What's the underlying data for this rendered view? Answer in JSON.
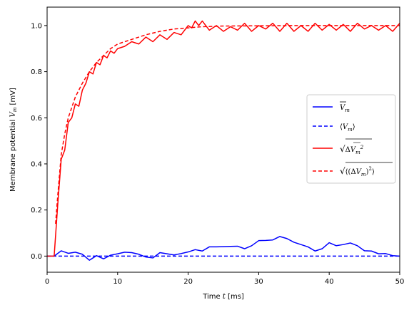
{
  "chart_data": {
    "type": "line",
    "xlabel": "Time t [ms]",
    "ylabel": "Membrane potential V_m [mV]",
    "xlim": [
      0,
      50
    ],
    "ylim": [
      -0.07,
      1.08
    ],
    "xticks": [
      "0",
      "10",
      "20",
      "30",
      "40",
      "50"
    ],
    "yticks": [
      "0.0",
      "0.2",
      "0.4",
      "0.6",
      "0.8",
      "1.0"
    ],
    "grid": false,
    "legend_position": "center-right",
    "series": [
      {
        "name": "V̄_m",
        "color": "#0000ff",
        "style": "solid",
        "x": [
          0,
          1,
          2,
          3,
          4,
          5,
          6,
          7,
          8,
          9,
          10,
          11,
          12,
          13,
          14,
          15,
          16,
          17,
          18,
          19,
          20,
          21,
          22,
          23,
          24,
          25,
          26,
          27,
          28,
          29,
          30,
          31,
          32,
          33,
          34,
          35,
          36,
          37,
          38,
          39,
          40,
          41,
          42,
          43,
          44,
          45,
          46,
          47,
          48,
          49,
          50
        ],
        "y": [
          0,
          0,
          0.023,
          0.012,
          0.017,
          0.008,
          -0.018,
          0.002,
          -0.012,
          0.004,
          0.01,
          0.017,
          0.015,
          0.008,
          -0.004,
          -0.008,
          0.015,
          0.01,
          0.005,
          0.011,
          0.018,
          0.028,
          0.022,
          0.04,
          0.04,
          0.041,
          0.042,
          0.043,
          0.032,
          0.045,
          0.067,
          0.068,
          0.07,
          0.085,
          0.076,
          0.06,
          0.05,
          0.04,
          0.022,
          0.032,
          0.058,
          0.045,
          0.05,
          0.057,
          0.045,
          0.023,
          0.022,
          0.01,
          0.011,
          0.002,
          0
        ]
      },
      {
        "name": "⟨V_m⟩",
        "color": "#0000ff",
        "style": "dashed",
        "x": [
          0,
          50
        ],
        "y": [
          0,
          0
        ]
      },
      {
        "name": "√(ΔV̄_m²)",
        "color": "#ff0000",
        "style": "solid",
        "x": [
          0,
          1,
          1.5,
          2,
          2.5,
          3,
          3.5,
          4,
          4.5,
          5,
          5.5,
          6,
          6.5,
          7,
          7.5,
          8,
          8.5,
          9,
          9.5,
          10,
          11,
          12,
          13,
          14,
          15,
          16,
          17,
          18,
          19,
          20,
          20.5,
          21,
          21.5,
          22,
          23,
          24,
          25,
          26,
          27,
          28,
          29,
          30,
          31,
          32,
          33,
          34,
          35,
          36,
          37,
          38,
          39,
          40,
          41,
          42,
          43,
          44,
          45,
          46,
          47,
          48,
          49,
          50
        ],
        "y": [
          0,
          0,
          0.22,
          0.42,
          0.46,
          0.58,
          0.6,
          0.66,
          0.65,
          0.72,
          0.75,
          0.8,
          0.79,
          0.84,
          0.83,
          0.87,
          0.86,
          0.89,
          0.88,
          0.9,
          0.91,
          0.93,
          0.92,
          0.95,
          0.93,
          0.96,
          0.94,
          0.97,
          0.96,
          1.0,
          0.99,
          1.02,
          1.0,
          1.02,
          0.98,
          1.0,
          0.975,
          0.995,
          0.98,
          1.01,
          0.975,
          1.0,
          0.985,
          1.01,
          0.975,
          1.01,
          0.975,
          1.0,
          0.975,
          1.01,
          0.98,
          1.005,
          0.98,
          1.005,
          0.975,
          1.01,
          0.985,
          1.0,
          0.98,
          1.0,
          0.975,
          1.01
        ]
      },
      {
        "name": "√⟨(ΔV_m)²⟩",
        "color": "#ff0000",
        "style": "dashed",
        "x": [
          1.2,
          1.5,
          2,
          2.5,
          3,
          4,
          5,
          6,
          7,
          8,
          9,
          10,
          12,
          14,
          16,
          18,
          20,
          22,
          25,
          30,
          35,
          40,
          45,
          50
        ],
        "y": [
          0.14,
          0.26,
          0.44,
          0.53,
          0.6,
          0.69,
          0.75,
          0.8,
          0.84,
          0.87,
          0.9,
          0.92,
          0.94,
          0.96,
          0.975,
          0.985,
          0.99,
          0.995,
          0.998,
          0.999,
          1.0,
          1.0,
          1.0,
          1.0
        ]
      }
    ]
  }
}
